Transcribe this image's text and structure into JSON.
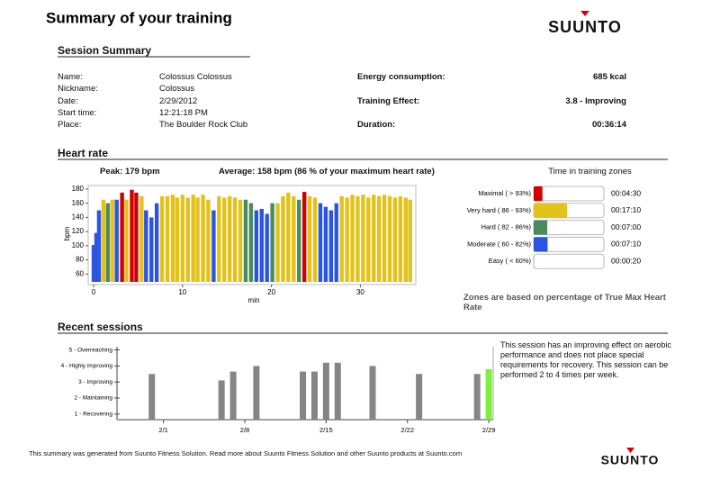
{
  "header": {
    "title": "Summary of your training",
    "brand": "SUUNTO"
  },
  "session_summary": {
    "title": "Session Summary",
    "fields": [
      {
        "label": "Name:",
        "value": "Colossus Colossus"
      },
      {
        "label": "Nickname:",
        "value": "Colossus"
      },
      {
        "label": "Date:",
        "value": "2/29/2012"
      },
      {
        "label": "Start time:",
        "value": "12:21:18 PM"
      },
      {
        "label": "Place:",
        "value": "The Boulder Rock Club"
      }
    ],
    "metrics": [
      {
        "label": "Energy consumption:",
        "value": "685 kcal"
      },
      {
        "label": "Training Effect:",
        "value": "3.8 - Improving"
      },
      {
        "label": "Duration:",
        "value": "00:36:14"
      }
    ]
  },
  "heart_rate": {
    "title": "Heart rate",
    "peak": "Peak: 179 bpm",
    "average": "Average: 158 bpm (86 % of your maximum heart rate)",
    "chart_data": {
      "type": "bar",
      "xlabel": "min",
      "ylabel": "bpm",
      "x": [
        0,
        0.3,
        0.6,
        1.1,
        1.6,
        2.1,
        2.6,
        3.2,
        3.7,
        4.3,
        4.8,
        5.4,
        5.9,
        6.5,
        7.1,
        7.7,
        8.3,
        8.9,
        9.4,
        10.0,
        10.6,
        11.2,
        11.7,
        12.3,
        12.9,
        13.5,
        14.1,
        14.7,
        15.3,
        15.9,
        16.5,
        17.1,
        17.7,
        18.3,
        18.9,
        19.5,
        20.1,
        20.7,
        21.3,
        21.9,
        22.5,
        23.1,
        23.7,
        24.3,
        24.9,
        25.5,
        26.1,
        26.7,
        27.3,
        27.9,
        28.5,
        29.1,
        29.7,
        30.3,
        30.9,
        31.5,
        32.1,
        32.7,
        33.3,
        33.9,
        34.5,
        35.1,
        35.6
      ],
      "values": [
        101,
        118,
        150,
        165,
        160,
        165,
        165,
        175,
        165,
        179,
        175,
        170,
        150,
        140,
        160,
        170,
        170,
        172,
        168,
        172,
        168,
        172,
        168,
        172,
        165,
        150,
        170,
        168,
        170,
        168,
        165,
        165,
        160,
        150,
        152,
        145,
        160,
        160,
        170,
        175,
        170,
        165,
        176,
        170,
        168,
        160,
        155,
        150,
        160,
        170,
        168,
        172,
        170,
        172,
        168,
        172,
        170,
        172,
        170,
        168,
        170,
        168,
        165
      ],
      "colors": [
        "#2a55e0",
        "#2a55e0",
        "#2a55e0",
        "#e3c21a",
        "#4a8a5c",
        "#e3c21a",
        "#2a55e0",
        "#d00000",
        "#e3c21a",
        "#d00000",
        "#d00000",
        "#e3c21a",
        "#2a55e0",
        "#2a55e0",
        "#2a55e0",
        "#e3c21a",
        "#e3c21a",
        "#e3c21a",
        "#e3c21a",
        "#e3c21a",
        "#e3c21a",
        "#e3c21a",
        "#e3c21a",
        "#e3c21a",
        "#e3c21a",
        "#2a55e0",
        "#e3c21a",
        "#e3c21a",
        "#e3c21a",
        "#e3c21a",
        "#e3c21a",
        "#4a8a5c",
        "#4a8a5c",
        "#2a55e0",
        "#2a55e0",
        "#2a55e0",
        "#4a8a5c",
        "#e3c21a",
        "#e3c21a",
        "#e3c21a",
        "#e3c21a",
        "#4a8a5c",
        "#d00000",
        "#e3c21a",
        "#e3c21a",
        "#2a55e0",
        "#2a55e0",
        "#2a55e0",
        "#2a55e0",
        "#e3c21a",
        "#e3c21a",
        "#e3c21a",
        "#e3c21a",
        "#e3c21a",
        "#e3c21a",
        "#e3c21a",
        "#e3c21a",
        "#e3c21a",
        "#e3c21a",
        "#e3c21a",
        "#e3c21a",
        "#e3c21a",
        "#e3c21a"
      ],
      "xlim": [
        0,
        36.23
      ],
      "xticks": [
        0,
        10,
        20,
        30
      ],
      "ylim": [
        49,
        185
      ],
      "yticks": [
        60,
        80,
        100,
        120,
        140,
        160,
        180
      ]
    }
  },
  "zones": {
    "title": "Time in training zones",
    "note": "Zones are based on percentage of True Max Heart Rate",
    "chart_data": {
      "type": "hbar",
      "categories": [
        "Maximal ( > 93%)",
        "Very hard ( 86 - 93%)",
        "Hard ( 82 - 86%)",
        "Moderate ( 60 - 82%)",
        "Easy ( < 60%)"
      ],
      "values": [
        4.5,
        17.17,
        7,
        7.17,
        0.33
      ],
      "value_labels": [
        "00:04:30",
        "00:17:10",
        "00:07:00",
        "00:07:10",
        "00:00:20"
      ],
      "colors": [
        "#d00000",
        "#e3c21a",
        "#4a8a5c",
        "#2a55e0",
        "#bbbbbb"
      ],
      "xlim": [
        0,
        36.23
      ]
    }
  },
  "recent": {
    "title": "Recent sessions",
    "text": "This session has an improving effect on aerobic performance and does not place special requirements for recovery. This session can be performed 2 to 4 times per week.",
    "chart_data": {
      "type": "bar",
      "x": [
        "1/31",
        "2/6",
        "2/7",
        "2/9",
        "2/13",
        "2/14",
        "2/15",
        "2/16",
        "2/19",
        "2/23",
        "2/28",
        "2/29"
      ],
      "values": [
        3.5,
        3.1,
        3.65,
        4.0,
        3.65,
        3.65,
        4.2,
        4.2,
        4.0,
        3.5,
        3.5,
        3.8
      ],
      "colors": [
        "#858585",
        "#858585",
        "#858585",
        "#858585",
        "#858585",
        "#858585",
        "#858585",
        "#858585",
        "#858585",
        "#858585",
        "#858585",
        "#7cf03a"
      ],
      "xlim": [
        "1/28",
        "3/1"
      ],
      "xticks": [
        "2/1",
        "2/8",
        "2/15",
        "2/22",
        "2/29"
      ],
      "ylim": [
        0.65,
        5.2
      ],
      "yticks": [
        {
          "value": 1,
          "label": "1 - Recovering"
        },
        {
          "value": 2,
          "label": "2 - Maintaining"
        },
        {
          "value": 3,
          "label": "3 - Improving"
        },
        {
          "value": 4,
          "label": "4 - Highly improving"
        },
        {
          "value": 5,
          "label": "5 - Overreaching"
        }
      ]
    }
  },
  "footer": {
    "text": "This summary was generated from Suunto Fitness Solution. Read more about Suunto Fitness Solution and other Suunto products at Suunto.com",
    "brand": "SUUNTO"
  }
}
